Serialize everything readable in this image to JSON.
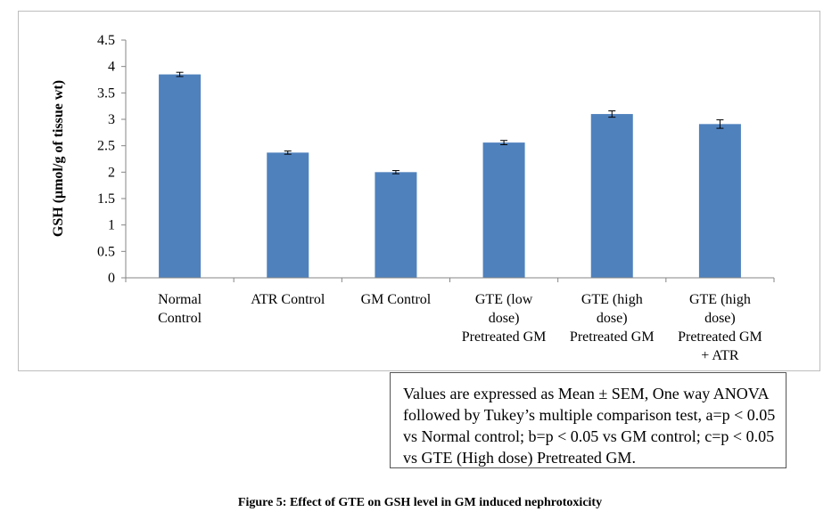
{
  "chart_data": {
    "type": "bar",
    "categories": [
      [
        "Normal",
        "Control"
      ],
      [
        "ATR Control"
      ],
      [
        "GM Control"
      ],
      [
        "GTE (low",
        "dose)",
        "Pretreated GM"
      ],
      [
        "GTE (high",
        "dose)",
        "Pretreated GM"
      ],
      [
        "GTE (high",
        "dose)",
        "Pretreated GM",
        "+ ATR"
      ]
    ],
    "values": [
      3.85,
      2.37,
      2.0,
      2.56,
      3.1,
      2.91
    ],
    "errors": [
      0.04,
      0.03,
      0.03,
      0.04,
      0.06,
      0.08
    ],
    "ylabel": "GSH (μmol/g of tissue wt)",
    "ylim": [
      0,
      4.5
    ],
    "yticks": [
      "0",
      "0.5",
      "1",
      "1.5",
      "2",
      "2.5",
      "3",
      "3.5",
      "4",
      "4.5"
    ],
    "bar_color": "#4f81bd",
    "grid": false
  },
  "note": "Values are expressed as Mean ± SEM, One way ANOVA followed by Tukey’s multiple comparison test, a=p < 0.05 vs Normal control; b=p < 0.05 vs GM control; c=p < 0.05 vs GTE (High dose) Pretreated GM.",
  "caption": "Figure 5: Effect of GTE on GSH level in GM induced nephrotoxicity"
}
